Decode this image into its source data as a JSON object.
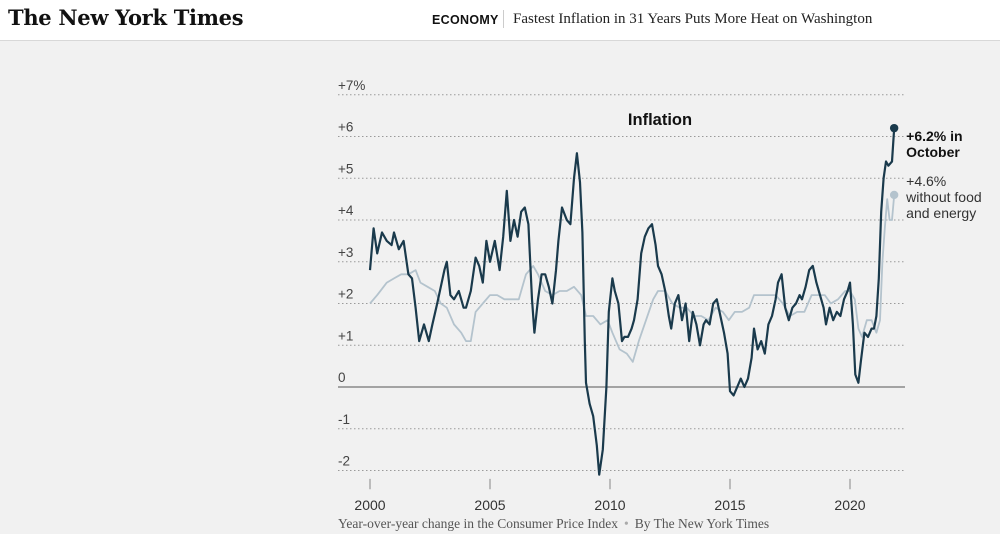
{
  "header": {
    "logo": "The New York Times",
    "section": "ECONOMY",
    "headline": "Fastest Inflation in 31 Years Puts More Heat on Washington"
  },
  "footer": {
    "caption": "Year-over-year change in the Consumer Price Index",
    "byline": "By The New York Times"
  },
  "colors": {
    "headline_series": "#1a3a4c",
    "core_series": "#b4c3cd",
    "background": "#f1f1f1"
  },
  "chart_data": {
    "type": "line",
    "title": "Inflation",
    "x_unit": "year",
    "xlim": [
      1999.4,
      2022.2
    ],
    "ylim": [
      -2,
      7
    ],
    "x_ticks": [
      2000,
      2005,
      2010,
      2015,
      2020
    ],
    "y_ticks": [
      {
        "value": 7,
        "label": "+7%"
      },
      {
        "value": 6,
        "label": "+6"
      },
      {
        "value": 5,
        "label": "+5"
      },
      {
        "value": 4,
        "label": "+4"
      },
      {
        "value": 3,
        "label": "+3"
      },
      {
        "value": 2,
        "label": "+2"
      },
      {
        "value": 1,
        "label": "+1"
      },
      {
        "value": 0,
        "label": "0"
      },
      {
        "value": -1,
        "label": "-1"
      },
      {
        "value": -2,
        "label": "-2"
      }
    ],
    "grid": "dotted horizontal",
    "series": [
      {
        "id": "all_items",
        "color": "#1a3a4c",
        "endpoint_label": [
          "+6.2% in",
          "October"
        ],
        "points": [
          [
            2000.0,
            2.8
          ],
          [
            2000.15,
            3.8
          ],
          [
            2000.3,
            3.2
          ],
          [
            2000.5,
            3.7
          ],
          [
            2000.7,
            3.5
          ],
          [
            2000.9,
            3.4
          ],
          [
            2001.0,
            3.7
          ],
          [
            2001.2,
            3.3
          ],
          [
            2001.4,
            3.5
          ],
          [
            2001.6,
            2.7
          ],
          [
            2001.75,
            2.6
          ],
          [
            2001.9,
            1.9
          ],
          [
            2002.05,
            1.1
          ],
          [
            2002.25,
            1.5
          ],
          [
            2002.45,
            1.1
          ],
          [
            2002.6,
            1.5
          ],
          [
            2002.8,
            2.0
          ],
          [
            2002.95,
            2.4
          ],
          [
            2003.1,
            2.8
          ],
          [
            2003.2,
            3.0
          ],
          [
            2003.35,
            2.2
          ],
          [
            2003.5,
            2.1
          ],
          [
            2003.7,
            2.3
          ],
          [
            2003.9,
            1.9
          ],
          [
            2004.0,
            1.9
          ],
          [
            2004.2,
            2.3
          ],
          [
            2004.4,
            3.1
          ],
          [
            2004.55,
            2.9
          ],
          [
            2004.7,
            2.5
          ],
          [
            2004.85,
            3.5
          ],
          [
            2005.0,
            3.0
          ],
          [
            2005.2,
            3.5
          ],
          [
            2005.4,
            2.8
          ],
          [
            2005.55,
            3.6
          ],
          [
            2005.7,
            4.7
          ],
          [
            2005.85,
            3.5
          ],
          [
            2006.0,
            4.0
          ],
          [
            2006.15,
            3.6
          ],
          [
            2006.3,
            4.2
          ],
          [
            2006.45,
            4.3
          ],
          [
            2006.6,
            3.9
          ],
          [
            2006.75,
            2.1
          ],
          [
            2006.85,
            1.3
          ],
          [
            2007.0,
            2.1
          ],
          [
            2007.15,
            2.7
          ],
          [
            2007.3,
            2.7
          ],
          [
            2007.45,
            2.4
          ],
          [
            2007.6,
            2.0
          ],
          [
            2007.75,
            2.8
          ],
          [
            2007.85,
            3.5
          ],
          [
            2008.0,
            4.3
          ],
          [
            2008.2,
            4.0
          ],
          [
            2008.35,
            3.9
          ],
          [
            2008.5,
            5.0
          ],
          [
            2008.62,
            5.6
          ],
          [
            2008.75,
            4.9
          ],
          [
            2008.85,
            3.7
          ],
          [
            2008.95,
            1.1
          ],
          [
            2009.0,
            0.1
          ],
          [
            2009.15,
            -0.4
          ],
          [
            2009.3,
            -0.7
          ],
          [
            2009.45,
            -1.4
          ],
          [
            2009.55,
            -2.1
          ],
          [
            2009.7,
            -1.5
          ],
          [
            2009.85,
            0.0
          ],
          [
            2009.95,
            1.8
          ],
          [
            2010.1,
            2.6
          ],
          [
            2010.2,
            2.3
          ],
          [
            2010.35,
            2.0
          ],
          [
            2010.5,
            1.1
          ],
          [
            2010.6,
            1.2
          ],
          [
            2010.75,
            1.2
          ],
          [
            2010.9,
            1.4
          ],
          [
            2011.0,
            1.6
          ],
          [
            2011.15,
            2.1
          ],
          [
            2011.3,
            3.2
          ],
          [
            2011.45,
            3.6
          ],
          [
            2011.6,
            3.8
          ],
          [
            2011.75,
            3.9
          ],
          [
            2011.9,
            3.4
          ],
          [
            2012.0,
            2.9
          ],
          [
            2012.15,
            2.7
          ],
          [
            2012.3,
            2.3
          ],
          [
            2012.45,
            1.7
          ],
          [
            2012.55,
            1.4
          ],
          [
            2012.7,
            2.0
          ],
          [
            2012.85,
            2.2
          ],
          [
            2013.0,
            1.6
          ],
          [
            2013.15,
            2.0
          ],
          [
            2013.3,
            1.1
          ],
          [
            2013.45,
            1.8
          ],
          [
            2013.6,
            1.5
          ],
          [
            2013.75,
            1.0
          ],
          [
            2013.9,
            1.5
          ],
          [
            2014.0,
            1.6
          ],
          [
            2014.15,
            1.5
          ],
          [
            2014.3,
            2.0
          ],
          [
            2014.45,
            2.1
          ],
          [
            2014.6,
            1.7
          ],
          [
            2014.75,
            1.3
          ],
          [
            2014.9,
            0.8
          ],
          [
            2015.0,
            -0.1
          ],
          [
            2015.15,
            -0.2
          ],
          [
            2015.3,
            0.0
          ],
          [
            2015.45,
            0.2
          ],
          [
            2015.6,
            0.0
          ],
          [
            2015.75,
            0.2
          ],
          [
            2015.9,
            0.7
          ],
          [
            2016.0,
            1.4
          ],
          [
            2016.15,
            0.9
          ],
          [
            2016.3,
            1.1
          ],
          [
            2016.45,
            0.8
          ],
          [
            2016.6,
            1.5
          ],
          [
            2016.75,
            1.7
          ],
          [
            2016.9,
            2.1
          ],
          [
            2017.0,
            2.5
          ],
          [
            2017.15,
            2.7
          ],
          [
            2017.3,
            1.9
          ],
          [
            2017.45,
            1.6
          ],
          [
            2017.6,
            1.9
          ],
          [
            2017.75,
            2.0
          ],
          [
            2017.9,
            2.2
          ],
          [
            2018.0,
            2.1
          ],
          [
            2018.15,
            2.4
          ],
          [
            2018.3,
            2.8
          ],
          [
            2018.45,
            2.9
          ],
          [
            2018.6,
            2.5
          ],
          [
            2018.75,
            2.2
          ],
          [
            2018.9,
            1.9
          ],
          [
            2019.0,
            1.5
          ],
          [
            2019.15,
            1.9
          ],
          [
            2019.3,
            1.6
          ],
          [
            2019.45,
            1.8
          ],
          [
            2019.6,
            1.7
          ],
          [
            2019.75,
            2.1
          ],
          [
            2019.9,
            2.3
          ],
          [
            2020.0,
            2.5
          ],
          [
            2020.12,
            1.5
          ],
          [
            2020.22,
            0.3
          ],
          [
            2020.35,
            0.1
          ],
          [
            2020.45,
            0.6
          ],
          [
            2020.6,
            1.3
          ],
          [
            2020.75,
            1.2
          ],
          [
            2020.9,
            1.4
          ],
          [
            2021.0,
            1.4
          ],
          [
            2021.1,
            1.7
          ],
          [
            2021.2,
            2.6
          ],
          [
            2021.3,
            4.2
          ],
          [
            2021.4,
            5.0
          ],
          [
            2021.5,
            5.4
          ],
          [
            2021.6,
            5.3
          ],
          [
            2021.75,
            5.4
          ],
          [
            2021.84,
            6.2
          ]
        ]
      },
      {
        "id": "core",
        "color": "#b4c3cd",
        "endpoint_label": [
          "+4.6%",
          "without food",
          "and energy"
        ],
        "points": [
          [
            2000.0,
            2.0
          ],
          [
            2000.3,
            2.2
          ],
          [
            2000.7,
            2.5
          ],
          [
            2001.0,
            2.6
          ],
          [
            2001.3,
            2.7
          ],
          [
            2001.6,
            2.7
          ],
          [
            2001.9,
            2.8
          ],
          [
            2002.1,
            2.5
          ],
          [
            2002.4,
            2.4
          ],
          [
            2002.7,
            2.3
          ],
          [
            2002.95,
            2.0
          ],
          [
            2003.2,
            1.9
          ],
          [
            2003.5,
            1.5
          ],
          [
            2003.8,
            1.3
          ],
          [
            2004.0,
            1.1
          ],
          [
            2004.2,
            1.1
          ],
          [
            2004.4,
            1.8
          ],
          [
            2004.7,
            2.0
          ],
          [
            2005.0,
            2.2
          ],
          [
            2005.3,
            2.2
          ],
          [
            2005.6,
            2.1
          ],
          [
            2005.9,
            2.1
          ],
          [
            2006.2,
            2.1
          ],
          [
            2006.5,
            2.7
          ],
          [
            2006.8,
            2.9
          ],
          [
            2007.0,
            2.7
          ],
          [
            2007.3,
            2.3
          ],
          [
            2007.6,
            2.2
          ],
          [
            2007.9,
            2.3
          ],
          [
            2008.2,
            2.3
          ],
          [
            2008.5,
            2.4
          ],
          [
            2008.8,
            2.2
          ],
          [
            2009.0,
            1.7
          ],
          [
            2009.3,
            1.7
          ],
          [
            2009.6,
            1.5
          ],
          [
            2009.9,
            1.6
          ],
          [
            2010.1,
            1.3
          ],
          [
            2010.4,
            0.9
          ],
          [
            2010.7,
            0.8
          ],
          [
            2010.95,
            0.6
          ],
          [
            2011.2,
            1.1
          ],
          [
            2011.5,
            1.6
          ],
          [
            2011.8,
            2.1
          ],
          [
            2012.0,
            2.3
          ],
          [
            2012.3,
            2.3
          ],
          [
            2012.6,
            2.0
          ],
          [
            2012.9,
            1.9
          ],
          [
            2013.2,
            1.9
          ],
          [
            2013.5,
            1.7
          ],
          [
            2013.8,
            1.7
          ],
          [
            2014.1,
            1.6
          ],
          [
            2014.4,
            1.9
          ],
          [
            2014.7,
            1.8
          ],
          [
            2014.95,
            1.6
          ],
          [
            2015.2,
            1.8
          ],
          [
            2015.5,
            1.8
          ],
          [
            2015.8,
            1.9
          ],
          [
            2016.0,
            2.2
          ],
          [
            2016.3,
            2.2
          ],
          [
            2016.6,
            2.2
          ],
          [
            2016.9,
            2.2
          ],
          [
            2017.2,
            2.0
          ],
          [
            2017.5,
            1.7
          ],
          [
            2017.8,
            1.8
          ],
          [
            2018.1,
            1.8
          ],
          [
            2018.4,
            2.2
          ],
          [
            2018.7,
            2.2
          ],
          [
            2018.95,
            2.2
          ],
          [
            2019.2,
            2.0
          ],
          [
            2019.5,
            2.1
          ],
          [
            2019.8,
            2.3
          ],
          [
            2020.0,
            2.3
          ],
          [
            2020.2,
            2.1
          ],
          [
            2020.35,
            1.4
          ],
          [
            2020.5,
            1.2
          ],
          [
            2020.7,
            1.6
          ],
          [
            2020.9,
            1.6
          ],
          [
            2021.1,
            1.3
          ],
          [
            2021.25,
            1.6
          ],
          [
            2021.35,
            3.0
          ],
          [
            2021.45,
            3.8
          ],
          [
            2021.55,
            4.5
          ],
          [
            2021.65,
            4.0
          ],
          [
            2021.75,
            4.0
          ],
          [
            2021.84,
            4.6
          ]
        ]
      }
    ]
  }
}
